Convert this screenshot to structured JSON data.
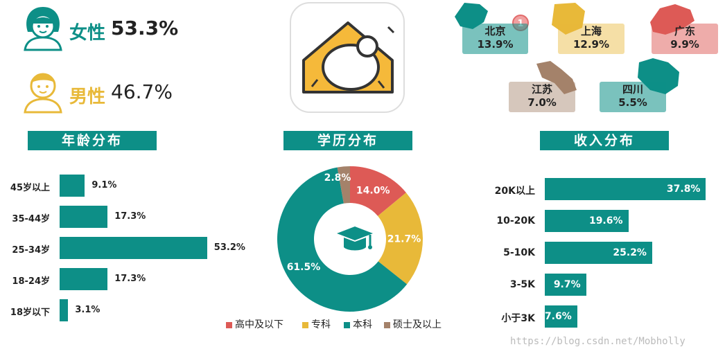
{
  "gender": {
    "female": {
      "label": "女性",
      "value": "53.3%",
      "color": "#0d8f87"
    },
    "male": {
      "label": "男性",
      "value": "46.7%",
      "color": "#e8b939"
    }
  },
  "regions": [
    {
      "name": "北京",
      "value": "13.9%",
      "rank": "1",
      "color": "#0d8f87"
    },
    {
      "name": "上海",
      "value": "12.9%",
      "color": "#e8b939"
    },
    {
      "name": "广东",
      "value": "9.9%",
      "color": "#dd5a56"
    },
    {
      "name": "江苏",
      "value": "7.0%",
      "color": "#a4826a"
    },
    {
      "name": "四川",
      "value": "5.5%",
      "color": "#0d8f87"
    }
  ],
  "chart_data": [
    {
      "type": "bar",
      "title": "年龄分布",
      "orientation": "horizontal",
      "categories": [
        "45岁以上",
        "35-44岁",
        "25-34岁",
        "18-24岁",
        "18岁以下"
      ],
      "values": [
        9.1,
        17.3,
        53.2,
        17.3,
        3.1
      ],
      "labels": [
        "9.1%",
        "17.3%",
        "53.2%",
        "17.3%",
        "3.1%"
      ],
      "color": "#0d8f87"
    },
    {
      "type": "pie",
      "title": "学历分布",
      "donut": true,
      "categories": [
        "高中及以下",
        "专科",
        "本科",
        "硕士及以上"
      ],
      "values": [
        14.0,
        21.7,
        61.5,
        2.8
      ],
      "labels": [
        "14.0%",
        "21.7%",
        "61.5%",
        "2.8%"
      ],
      "colors": [
        "#dd5a56",
        "#e8b939",
        "#0d8f87",
        "#a4826a"
      ],
      "legend": "bottom"
    },
    {
      "type": "bar",
      "title": "收入分布",
      "orientation": "horizontal",
      "categories": [
        "20K以上",
        "10-20K",
        "5-10K",
        "3-5K",
        "小于3K"
      ],
      "values": [
        37.8,
        19.6,
        25.2,
        9.7,
        7.6
      ],
      "labels": [
        "37.8%",
        "19.6%",
        "25.2%",
        "9.7%",
        "7.6%"
      ],
      "color": "#0d8f87"
    }
  ],
  "watermark": "https://blog.csdn.net/Mobholly"
}
